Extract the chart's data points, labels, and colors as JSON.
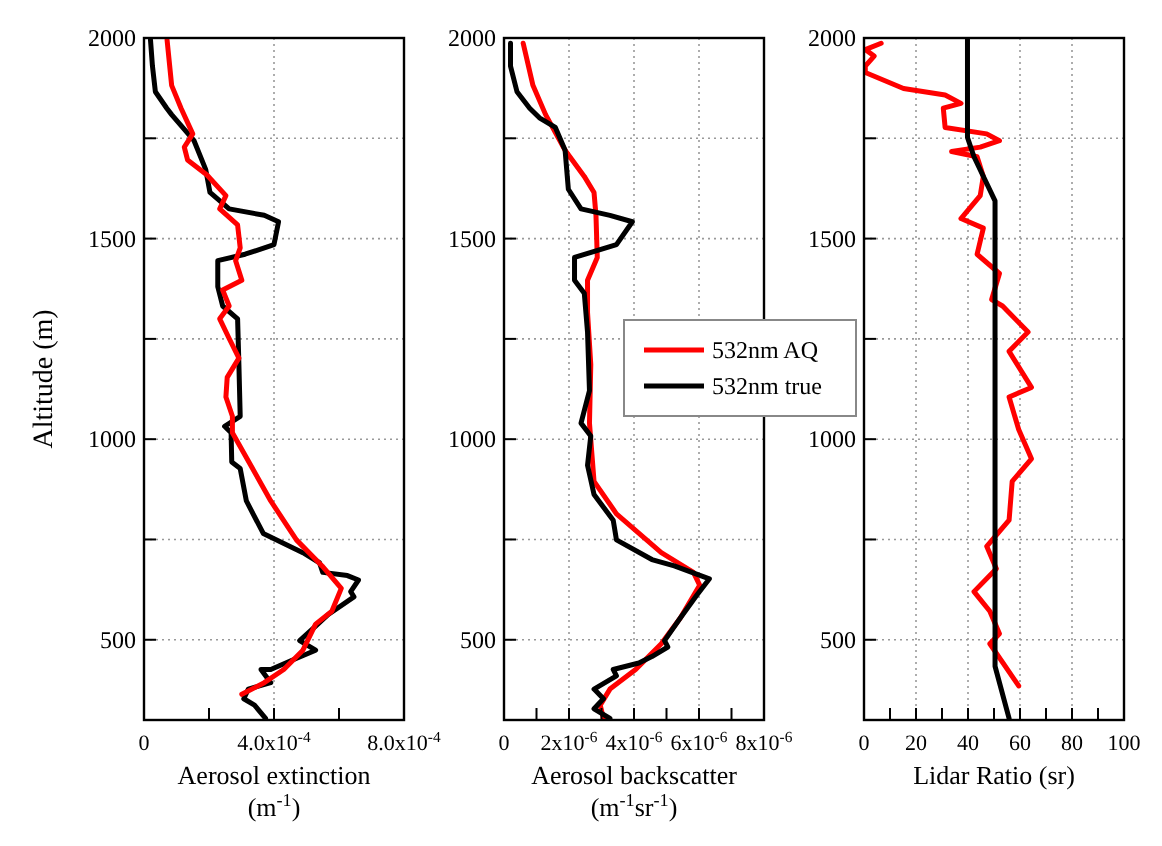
{
  "chart_data": [
    {
      "type": "line",
      "ylabel": "Altitude (m)",
      "xlabel": "Aerosol extinction (m$^{-1}$)",
      "xlim": [
        0,
        0.0008
      ],
      "xticks": [
        0,
        {
          "value": 0.0002,
          "label": null
        },
        {
          "value": 0.0004,
          "label": "4.0x10$^{-4}$"
        },
        {
          "value": 0.0006,
          "label": null
        },
        {
          "value": 0.0008,
          "label": "8.0x10$^{-4}$"
        }
      ],
      "ylim": [
        300,
        2000
      ],
      "yticks": [
        500,
        {
          "value": 750,
          "label": null
        },
        1000,
        {
          "value": 1250,
          "label": null
        },
        1500,
        {
          "value": 1750,
          "label": null
        },
        2000
      ],
      "grid": true,
      "line_style": "solid",
      "series": [
        {
          "color": "#000000",
          "x": [
            2e-05,
            2.6e-05,
            3.5e-05,
            7e-05,
            8.5e-05,
            0.000154,
            0.00019,
            0.000203,
            0.000262,
            0.00037,
            0.000414,
            0.0004,
            0.000311,
            0.000227,
            0.000227,
            0.000242,
            0.000288,
            0.000292,
            0.000296,
            0.000248,
            0.000268,
            0.00027,
            0.000296,
            0.000315,
            0.000367,
            0.000489,
            0.00054,
            0.00055,
            0.000626,
            0.00066,
            0.000636,
            0.000646,
            0.000567,
            0.000524,
            0.000479,
            0.000528,
            0.000459,
            0.00039,
            0.00036,
            0.00039,
            0.000321,
            0.000307,
            0.00034,
            0.000374
          ],
          "values": [
            1995,
            1930,
            1866,
            1825,
            1809,
            1744,
            1672,
            1615,
            1574,
            1558,
            1542,
            1485,
            1461,
            1445,
            1380,
            1332,
            1300,
            1186,
            1057,
            1032,
            1016,
            943,
            927,
            846,
            765,
            717,
            692,
            668,
            660,
            649,
            620,
            607,
            563,
            531,
            498,
            474,
            450,
            426,
            426,
            393,
            377,
            353,
            337,
            304
          ]
        },
        {
          "color": "#ff0000",
          "x": [
            7.1e-05,
            8.5e-05,
            0.000114,
            0.00015,
            0.000124,
            0.000134,
            0.000193,
            0.000252,
            0.000233,
            0.000288,
            0.000296,
            0.000282,
            0.000301,
            0.000242,
            0.000262,
            0.000233,
            0.000262,
            0.000292,
            0.000256,
            0.000252,
            0.000272,
            0.000272,
            0.000311,
            0.00039,
            0.000469,
            0.000548,
            0.000607,
            0.000578,
            0.000528,
            0.000489,
            0.00043,
            0.00037,
            0.000301
          ],
          "values": [
            1995,
            1882,
            1825,
            1761,
            1728,
            1696,
            1659,
            1607,
            1574,
            1534,
            1477,
            1445,
            1396,
            1372,
            1332,
            1300,
            1251,
            1202,
            1154,
            1105,
            1057,
            1016,
            960,
            846,
            749,
            684,
            628,
            571,
            539,
            474,
            426,
            393,
            364
          ]
        }
      ]
    },
    {
      "type": "line",
      "xlabel": "Aerosol backscatter (m$^{-1}$sr$^{-1}$)",
      "xlim": [
        0,
        8e-06
      ],
      "xticks": [
        0,
        {
          "value": 1e-06,
          "label": null
        },
        {
          "value": 2e-06,
          "label": "2x10$^{-6}$"
        },
        {
          "value": 3e-06,
          "label": null
        },
        {
          "value": 4e-06,
          "label": "4x10$^{-6}$"
        },
        {
          "value": 5e-06,
          "label": null
        },
        {
          "value": 6e-06,
          "label": "6x10$^{-6}$"
        },
        {
          "value": 7e-06,
          "label": null
        },
        {
          "value": 8e-06,
          "label": "8x10$^{-6}$"
        }
      ],
      "ylim": [
        300,
        2000
      ],
      "yticks": [
        500,
        {
          "value": 750,
          "label": null
        },
        1000,
        {
          "value": 1250,
          "label": null
        },
        1500,
        {
          "value": 1750,
          "label": null
        },
        2000
      ],
      "grid": true,
      "legend": "right",
      "line_style": "solid",
      "series": [
        {
          "name": "532nm AQ",
          "color": "#ff0000",
          "x": [
            5.9e-07,
            8.9e-07,
            1.28e-06,
            1.88e-06,
            2.47e-06,
            2.77e-06,
            2.83e-06,
            2.87e-06,
            2.57e-06,
            2.57e-06,
            2.67e-06,
            2.63e-06,
            2.77e-06,
            3.46e-06,
            4.84e-06,
            5.83e-06,
            6.02e-06,
            5.43e-06,
            4.84e-06,
            4.05e-06,
            3.26e-06,
            2.96e-06,
            3.06e-06
          ],
          "values": [
            1987,
            1882,
            1809,
            1720,
            1655,
            1615,
            1558,
            1453,
            1396,
            1316,
            1186,
            1040,
            895,
            814,
            717,
            668,
            636,
            555,
            490,
            426,
            377,
            337,
            304
          ]
        },
        {
          "name": "532nm true",
          "color": "#000000",
          "x": [
            2e-07,
            2e-07,
            4e-07,
            7.9e-07,
            1.09e-06,
            1.58e-06,
            1.88e-06,
            1.98e-06,
            2.37e-06,
            3.26e-06,
            3.95e-06,
            3.46e-06,
            2.17e-06,
            2.17e-06,
            2.47e-06,
            2.57e-06,
            2.63e-06,
            2.37e-06,
            2.67e-06,
            2.57e-06,
            2.77e-06,
            3.36e-06,
            3.46e-06,
            4.55e-06,
            5.24e-06,
            6.32e-06,
            5.93e-06,
            5.43e-06,
            4.94e-06,
            5.04e-06,
            4.55e-06,
            4.15e-06,
            3.36e-06,
            3.46e-06,
            2.77e-06,
            3.06e-06,
            2.77e-06,
            3.26e-06
          ],
          "values": [
            1987,
            1930,
            1866,
            1825,
            1801,
            1777,
            1720,
            1623,
            1574,
            1558,
            1542,
            1485,
            1453,
            1396,
            1364,
            1267,
            1121,
            1040,
            1008,
            935,
            862,
            798,
            749,
            700,
            684,
            652,
            611,
            555,
            498,
            482,
            458,
            442,
            426,
            410,
            377,
            353,
            328,
            304
          ]
        }
      ]
    },
    {
      "type": "line",
      "xlabel": "Lidar Ratio (sr)",
      "xlim": [
        0,
        100
      ],
      "xticks": [
        0,
        {
          "value": 10,
          "label": null
        },
        20,
        {
          "value": 30,
          "label": null
        },
        40,
        {
          "value": 50,
          "label": null
        },
        60,
        {
          "value": 70,
          "label": null
        },
        80,
        {
          "value": 90,
          "label": null
        },
        100
      ],
      "ylim": [
        300,
        2000
      ],
      "yticks": [
        500,
        {
          "value": 750,
          "label": null
        },
        1000,
        {
          "value": 1250,
          "label": null
        },
        1500,
        {
          "value": 1750,
          "label": null
        },
        2000
      ],
      "grid": true,
      "line_style": "solid",
      "series": [
        {
          "color": "#ff0000",
          "x": [
            6.6,
            0.5,
            3.9,
            0.5,
            0.5,
            15.2,
            31.2,
            37.3,
            30.5,
            31.2,
            47.2,
            52.1,
            44.7,
            33.7,
            43.5,
            45.9,
            44.7,
            37.3,
            45.9,
            43.5,
            52.1,
            49.1,
            53.3,
            63.1,
            55.8,
            64.4,
            55.8,
            59.5,
            64.4,
            57.0,
            55.8,
            47.2,
            50.9,
            42.3,
            48.4,
            52.1,
            48.4,
            59.5
          ],
          "values": [
            1987,
            1971,
            1955,
            1930,
            1914,
            1874,
            1858,
            1837,
            1825,
            1777,
            1761,
            1744,
            1728,
            1717,
            1704,
            1655,
            1607,
            1550,
            1526,
            1461,
            1413,
            1348,
            1332,
            1267,
            1219,
            1129,
            1105,
            1024,
            951,
            895,
            798,
            733,
            677,
            620,
            571,
            515,
            490,
            385
          ]
        },
        {
          "color": "#000000",
          "x": [
            39.8,
            39.8,
            42.3,
            50.4,
            50.4,
            55.8
          ],
          "values": [
            2000,
            1752,
            1704,
            1594,
            434,
            304
          ]
        }
      ]
    }
  ]
}
